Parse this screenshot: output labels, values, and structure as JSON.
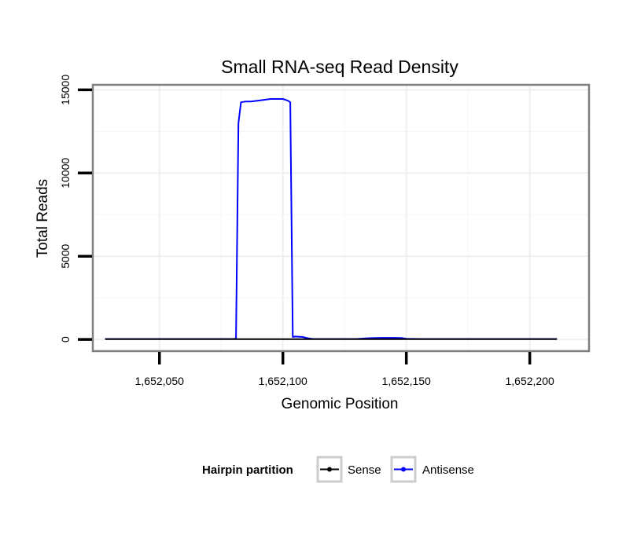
{
  "chart_data": {
    "type": "line",
    "title": "Small RNA-seq Read Density",
    "xlabel": "Genomic Position",
    "ylabel": "Total Reads",
    "xlim": [
      1652023,
      1652224
    ],
    "ylim": [
      -700,
      15300
    ],
    "x_ticks": [
      1652050,
      1652100,
      1652150,
      1652200
    ],
    "x_tick_labels": [
      "1,652,050",
      "1,652,100",
      "1,652,150",
      "1,652,200"
    ],
    "y_ticks": [
      0,
      5000,
      10000,
      15000
    ],
    "y_tick_labels": [
      "0",
      "5000",
      "10000",
      "15000"
    ],
    "grid": true,
    "legend": {
      "title": "Hairpin partition",
      "placement": "bottom",
      "entries": [
        "Sense",
        "Antisense"
      ]
    },
    "series": [
      {
        "name": "Sense",
        "color": "#000000",
        "x": [
          1652028,
          1652211
        ],
        "y": [
          20,
          20
        ]
      },
      {
        "name": "Antisense",
        "color": "#0000ff",
        "x": [
          1652028,
          1652080,
          1652081,
          1652082,
          1652083,
          1652085,
          1652087,
          1652090,
          1652095,
          1652100,
          1652102,
          1652103,
          1652104,
          1652105,
          1652108,
          1652110,
          1652112,
          1652120,
          1652130,
          1652135,
          1652140,
          1652145,
          1652148,
          1652150,
          1652155,
          1652211
        ],
        "y": [
          30,
          30,
          50,
          13000,
          14250,
          14300,
          14300,
          14350,
          14450,
          14450,
          14350,
          14250,
          150,
          180,
          150,
          80,
          30,
          30,
          30,
          80,
          100,
          100,
          90,
          40,
          30,
          30
        ]
      }
    ]
  }
}
